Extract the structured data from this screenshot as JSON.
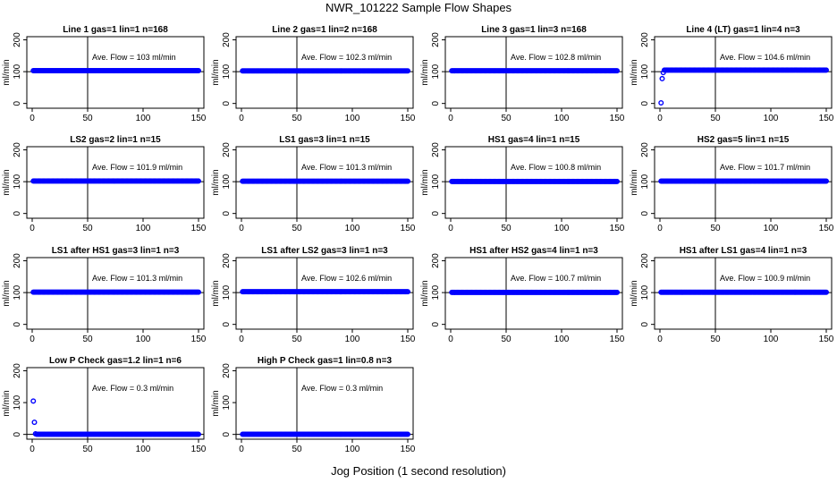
{
  "title": "NWR_101222  Sample Flow Shapes",
  "x_axis_title": "Jog Position (1 second resolution)",
  "chart_data": [
    {
      "type": "scatter",
      "title": "Line 1 gas=1 lin=1 n=168",
      "annotation": "Ave. Flow =  103  ml/min",
      "ylabel": "ml/min",
      "xlim": [
        0,
        150
      ],
      "ylim": [
        -15,
        210
      ],
      "xticks": [
        0,
        50,
        100,
        150
      ],
      "yticks": [
        0,
        100,
        200
      ],
      "vline": 50,
      "hline": 100,
      "color": "#0000ff",
      "series": [
        {
          "start": 1,
          "end": 150,
          "value": 103
        }
      ]
    },
    {
      "type": "scatter",
      "title": "Line 2 gas=1 lin=2 n=168",
      "annotation": "Ave. Flow =  102.3  ml/min",
      "ylabel": "ml/min",
      "xlim": [
        0,
        150
      ],
      "ylim": [
        -15,
        210
      ],
      "xticks": [
        0,
        50,
        100,
        150
      ],
      "yticks": [
        0,
        100,
        200
      ],
      "vline": 50,
      "hline": 100,
      "color": "#0000ff",
      "series": [
        {
          "start": 1,
          "end": 150,
          "value": 102.3
        }
      ]
    },
    {
      "type": "scatter",
      "title": "Line 3 gas=1 lin=3 n=168",
      "annotation": "Ave. Flow =  102.8  ml/min",
      "ylabel": "ml/min",
      "xlim": [
        0,
        150
      ],
      "ylim": [
        -15,
        210
      ],
      "xticks": [
        0,
        50,
        100,
        150
      ],
      "yticks": [
        0,
        100,
        200
      ],
      "vline": 50,
      "hline": 100,
      "color": "#0000ff",
      "series": [
        {
          "start": 1,
          "end": 150,
          "value": 102.8
        }
      ]
    },
    {
      "type": "scatter",
      "title": "Line 4 (LT) gas=1 lin=4 n=3",
      "annotation": "Ave. Flow =  104.6  ml/min",
      "ylabel": "ml/min",
      "xlim": [
        0,
        150
      ],
      "ylim": [
        -15,
        210
      ],
      "xticks": [
        0,
        50,
        100,
        150
      ],
      "yticks": [
        0,
        100,
        200
      ],
      "vline": 50,
      "hline": 100,
      "color": "#0000ff",
      "series": [
        {
          "start": 4,
          "end": 150,
          "value": 105
        }
      ],
      "extra_points": [
        [
          1,
          2
        ],
        [
          2,
          78
        ],
        [
          3,
          97
        ]
      ]
    },
    {
      "type": "scatter",
      "title": "LS2 gas=2 lin=1 n=15",
      "annotation": "Ave. Flow =  101.9  ml/min",
      "ylabel": "ml/min",
      "xlim": [
        0,
        150
      ],
      "ylim": [
        -15,
        210
      ],
      "xticks": [
        0,
        50,
        100,
        150
      ],
      "yticks": [
        0,
        100,
        200
      ],
      "vline": 50,
      "hline": 100,
      "color": "#0000ff",
      "series": [
        {
          "start": 1,
          "end": 150,
          "value": 101.9
        }
      ]
    },
    {
      "type": "scatter",
      "title": "LS1 gas=3 lin=1 n=15",
      "annotation": "Ave. Flow =  101.3  ml/min",
      "ylabel": "ml/min",
      "xlim": [
        0,
        150
      ],
      "ylim": [
        -15,
        210
      ],
      "xticks": [
        0,
        50,
        100,
        150
      ],
      "yticks": [
        0,
        100,
        200
      ],
      "vline": 50,
      "hline": 100,
      "color": "#0000ff",
      "series": [
        {
          "start": 1,
          "end": 150,
          "value": 101.3
        }
      ]
    },
    {
      "type": "scatter",
      "title": "HS1 gas=4 lin=1 n=15",
      "annotation": "Ave. Flow =  100.8  ml/min",
      "ylabel": "ml/min",
      "xlim": [
        0,
        150
      ],
      "ylim": [
        -15,
        210
      ],
      "xticks": [
        0,
        50,
        100,
        150
      ],
      "yticks": [
        0,
        100,
        200
      ],
      "vline": 50,
      "hline": 100,
      "color": "#0000ff",
      "series": [
        {
          "start": 1,
          "end": 150,
          "value": 100.8
        }
      ]
    },
    {
      "type": "scatter",
      "title": "HS2 gas=5 lin=1 n=15",
      "annotation": "Ave. Flow =  101.7  ml/min",
      "ylabel": "ml/min",
      "xlim": [
        0,
        150
      ],
      "ylim": [
        -15,
        210
      ],
      "xticks": [
        0,
        50,
        100,
        150
      ],
      "yticks": [
        0,
        100,
        200
      ],
      "vline": 50,
      "hline": 100,
      "color": "#0000ff",
      "series": [
        {
          "start": 1,
          "end": 150,
          "value": 101.7
        }
      ]
    },
    {
      "type": "scatter",
      "title": "LS1 after HS1 gas=3 lin=1 n=3",
      "annotation": "Ave. Flow =  101.3  ml/min",
      "ylabel": "ml/min",
      "xlim": [
        0,
        150
      ],
      "ylim": [
        -15,
        210
      ],
      "xticks": [
        0,
        50,
        100,
        150
      ],
      "yticks": [
        0,
        100,
        200
      ],
      "vline": 50,
      "hline": 100,
      "color": "#0000ff",
      "series": [
        {
          "start": 1,
          "end": 150,
          "value": 101.3
        }
      ]
    },
    {
      "type": "scatter",
      "title": "LS1 after LS2 gas=3 lin=1 n=3",
      "annotation": "Ave. Flow =  102.6  ml/min",
      "ylabel": "ml/min",
      "xlim": [
        0,
        150
      ],
      "ylim": [
        -15,
        210
      ],
      "xticks": [
        0,
        50,
        100,
        150
      ],
      "yticks": [
        0,
        100,
        200
      ],
      "vline": 50,
      "hline": 100,
      "color": "#0000ff",
      "series": [
        {
          "start": 1,
          "end": 150,
          "value": 102.6
        }
      ]
    },
    {
      "type": "scatter",
      "title": "HS1 after HS2 gas=4 lin=1 n=3",
      "annotation": "Ave. Flow =  100.7  ml/min",
      "ylabel": "ml/min",
      "xlim": [
        0,
        150
      ],
      "ylim": [
        -15,
        210
      ],
      "xticks": [
        0,
        50,
        100,
        150
      ],
      "yticks": [
        0,
        100,
        200
      ],
      "vline": 50,
      "hline": 100,
      "color": "#0000ff",
      "series": [
        {
          "start": 1,
          "end": 150,
          "value": 100.7
        }
      ]
    },
    {
      "type": "scatter",
      "title": "HS1 after LS1 gas=4 lin=1 n=3",
      "annotation": "Ave. Flow =  100.9  ml/min",
      "ylabel": "ml/min",
      "xlim": [
        0,
        150
      ],
      "ylim": [
        -15,
        210
      ],
      "xticks": [
        0,
        50,
        100,
        150
      ],
      "yticks": [
        0,
        100,
        200
      ],
      "vline": 50,
      "hline": 100,
      "color": "#0000ff",
      "series": [
        {
          "start": 1,
          "end": 150,
          "value": 100.9
        }
      ]
    },
    {
      "type": "scatter",
      "title": "Low P Check gas=1.2 lin=1 n=6",
      "annotation": "Ave. Flow =  0.3  ml/min",
      "ylabel": "ml/min",
      "xlim": [
        0,
        150
      ],
      "ylim": [
        -15,
        210
      ],
      "xticks": [
        0,
        50,
        100,
        150
      ],
      "yticks": [
        0,
        100,
        200
      ],
      "vline": 50,
      "hline": 0,
      "color": "#0000ff",
      "series": [
        {
          "start": 4,
          "end": 150,
          "value": 0.3
        }
      ],
      "extra_points": [
        [
          1,
          105
        ],
        [
          2,
          38
        ],
        [
          3,
          2
        ]
      ]
    },
    {
      "type": "scatter",
      "title": "High P Check gas=1 lin=0.8 n=3",
      "annotation": "Ave. Flow =  0.3  ml/min",
      "ylabel": "ml/min",
      "xlim": [
        0,
        150
      ],
      "ylim": [
        -15,
        210
      ],
      "xticks": [
        0,
        50,
        100,
        150
      ],
      "yticks": [
        0,
        100,
        200
      ],
      "vline": 50,
      "hline": 0,
      "color": "#0000ff",
      "series": [
        {
          "start": 1,
          "end": 150,
          "value": 0.3
        }
      ]
    }
  ]
}
